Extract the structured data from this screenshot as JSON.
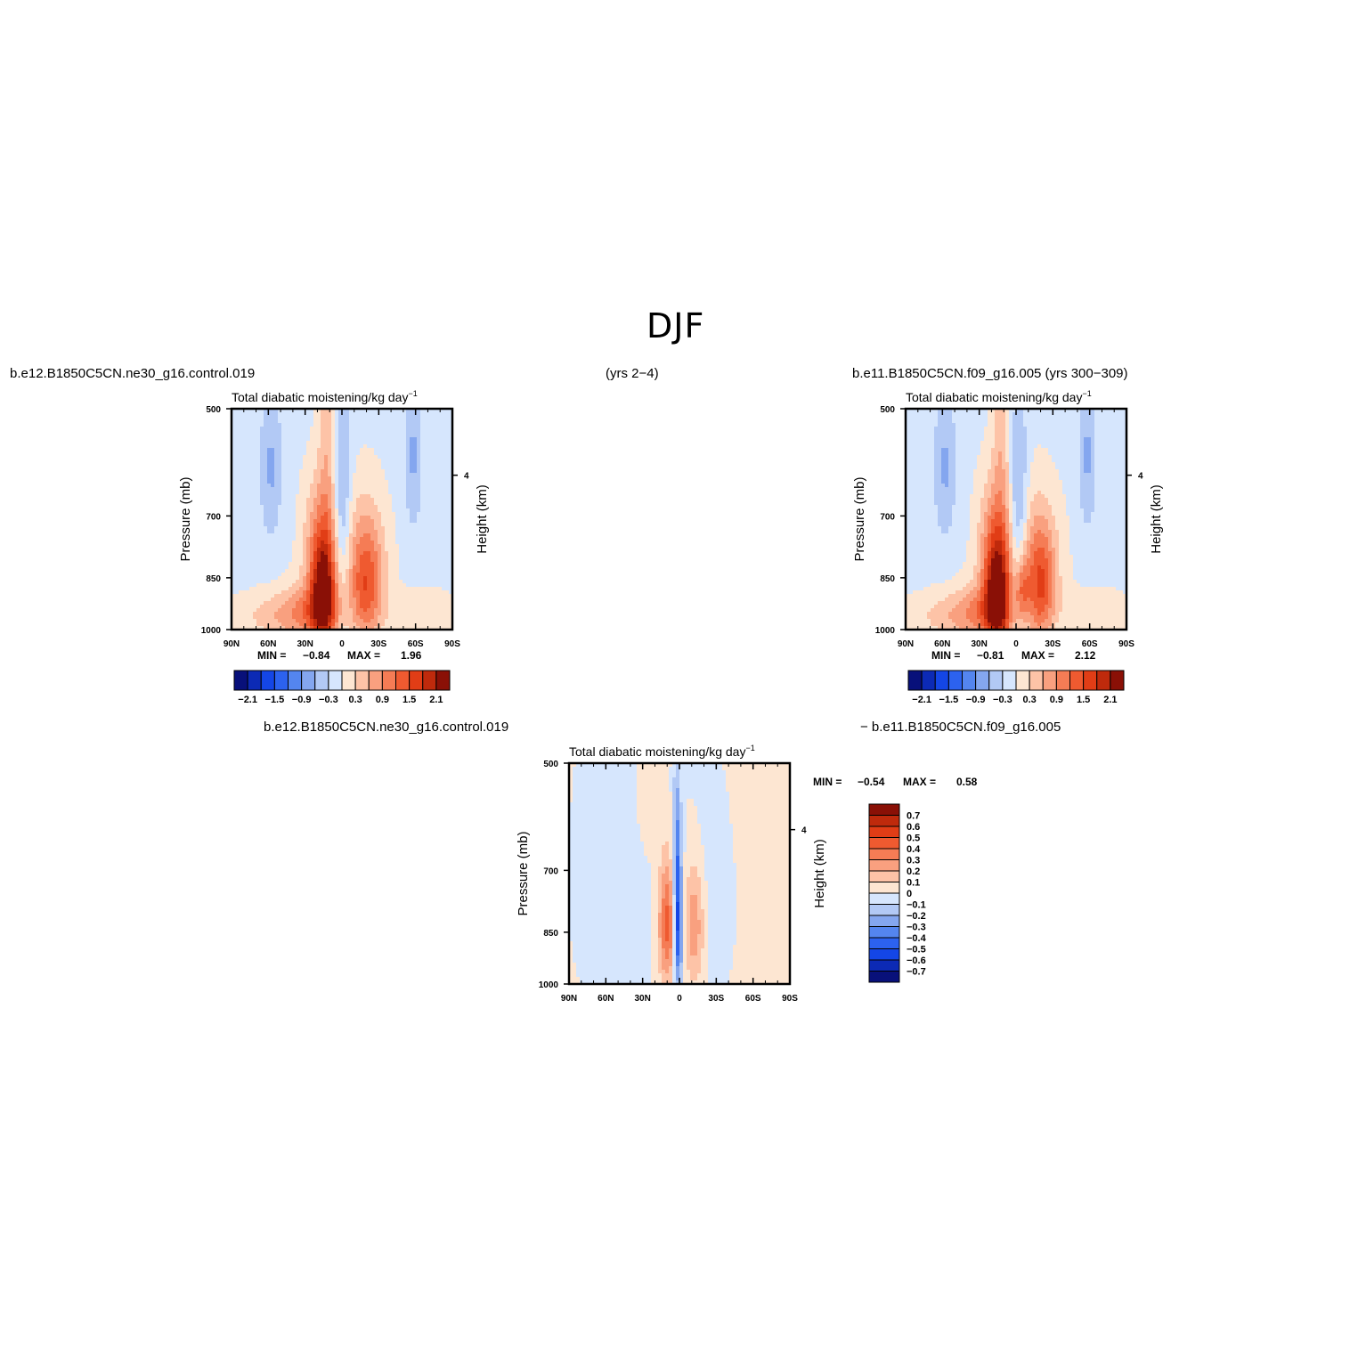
{
  "figure": {
    "title": "DJF",
    "case_test": "b.e12.B1850C5CN.ne30_g16.control.019",
    "years_test": "(yrs 2−4)",
    "case_ctrl": "b.e11.B1850C5CN.f09_g16.005 (yrs 300−309)",
    "diff_test": "b.e12.B1850C5CN.ne30_g16.control.019",
    "diff_ctrl": "− b.e11.B1850C5CN.f09_g16.005"
  },
  "colors": {
    "frame": "#000000",
    "cmap_full": [
      "#08107a",
      "#0c2ab5",
      "#1446e6",
      "#2c62ef",
      "#5485ef",
      "#84a6ef",
      "#b2c9f5",
      "#d6e6fd",
      "#fde6d2",
      "#fdc3a7",
      "#f9a07f",
      "#f57c55",
      "#ef5a30",
      "#e13d16",
      "#bf2a0c",
      "#8a1006"
    ],
    "cmap_diff": [
      "#08107a",
      "#0c2ab5",
      "#1446e6",
      "#2c62ef",
      "#5485ef",
      "#84a6ef",
      "#b2c9f5",
      "#d6e6fd",
      "#fde6d2",
      "#fdc3a7",
      "#f9a07f",
      "#f57c55",
      "#ef5a30",
      "#e13d16",
      "#bf2a0c",
      "#8a1006"
    ]
  },
  "chart_data": [
    {
      "type": "heatmap",
      "panel": "test",
      "title": "Total diabatic moistening/kg day",
      "title_sup": "−1",
      "ylabel": "Pressure (mb)",
      "ylabel_right": "Height (km)",
      "x_ticks": [
        "90N",
        "60N",
        "30N",
        "0",
        "30S",
        "60S",
        "90S"
      ],
      "y_ticks": [
        "500",
        "700",
        "850",
        "1000"
      ],
      "y_ticks_right": [
        "4"
      ],
      "min_label": "MIN =",
      "min_value": "−0.84",
      "max_label": "MAX =",
      "max_value": "1.96",
      "colorbar_labels": [
        "−2.1",
        "−1.5",
        "−0.9",
        "−0.3",
        "0.3",
        "0.9",
        "1.5",
        "2.1"
      ],
      "ylim": [
        1000,
        500
      ],
      "blobs": [
        {
          "lat": 15,
          "p": 900,
          "amp": 2.0,
          "wlat": 7,
          "wp": 110
        },
        {
          "lat": 18,
          "p": 780,
          "amp": 0.9,
          "wlat": 10,
          "wp": 120
        },
        {
          "lat": 28,
          "p": 950,
          "amp": 0.9,
          "wlat": 18,
          "wp": 60
        },
        {
          "lat": -20,
          "p": 880,
          "amp": 1.1,
          "wlat": 9,
          "wp": 110
        },
        {
          "lat": -18,
          "p": 800,
          "amp": 0.6,
          "wlat": 14,
          "wp": 120
        },
        {
          "lat": 0,
          "p": 680,
          "amp": -0.7,
          "wlat": 5,
          "wp": 150
        },
        {
          "lat": 12,
          "p": 560,
          "amp": 0.5,
          "wlat": 5,
          "wp": 150
        },
        {
          "lat": 58,
          "p": 600,
          "amp": -0.55,
          "wlat": 6,
          "wp": 100
        },
        {
          "lat": -58,
          "p": 580,
          "amp": -0.55,
          "wlat": 5,
          "wp": 100
        },
        {
          "lat": 60,
          "p": 960,
          "amp": 0.4,
          "wlat": 25,
          "wp": 50
        },
        {
          "lat": -65,
          "p": 950,
          "amp": 0.35,
          "wlat": 22,
          "wp": 50
        }
      ]
    },
    {
      "type": "heatmap",
      "panel": "control",
      "title": "Total diabatic moistening/kg day",
      "title_sup": "−1",
      "ylabel": "Pressure (mb)",
      "ylabel_right": "Height (km)",
      "x_ticks": [
        "90N",
        "60N",
        "30N",
        "0",
        "30S",
        "60S",
        "90S"
      ],
      "y_ticks": [
        "500",
        "700",
        "850",
        "1000"
      ],
      "y_ticks_right": [
        "4"
      ],
      "min_label": "MIN =",
      "min_value": "−0.81",
      "max_label": "MAX =",
      "max_value": "2.12",
      "colorbar_labels": [
        "−2.1",
        "−1.5",
        "−0.9",
        "−0.3",
        "0.3",
        "0.9",
        "1.5",
        "2.1"
      ],
      "ylim": [
        1000,
        500
      ],
      "blobs": [
        {
          "lat": 15,
          "p": 900,
          "amp": 2.1,
          "wlat": 7,
          "wp": 110
        },
        {
          "lat": 18,
          "p": 780,
          "amp": 0.9,
          "wlat": 10,
          "wp": 120
        },
        {
          "lat": 28,
          "p": 950,
          "amp": 0.9,
          "wlat": 18,
          "wp": 60
        },
        {
          "lat": -20,
          "p": 880,
          "amp": 1.2,
          "wlat": 8,
          "wp": 110
        },
        {
          "lat": -5,
          "p": 880,
          "amp": 0.9,
          "wlat": 4,
          "wp": 60
        },
        {
          "lat": -18,
          "p": 800,
          "amp": 0.6,
          "wlat": 14,
          "wp": 120
        },
        {
          "lat": -2,
          "p": 680,
          "amp": -0.7,
          "wlat": 5,
          "wp": 150
        },
        {
          "lat": 12,
          "p": 560,
          "amp": 0.5,
          "wlat": 5,
          "wp": 150
        },
        {
          "lat": 58,
          "p": 600,
          "amp": -0.55,
          "wlat": 6,
          "wp": 100
        },
        {
          "lat": -58,
          "p": 580,
          "amp": -0.55,
          "wlat": 5,
          "wp": 100
        },
        {
          "lat": 60,
          "p": 960,
          "amp": 0.4,
          "wlat": 25,
          "wp": 50
        },
        {
          "lat": -65,
          "p": 950,
          "amp": 0.35,
          "wlat": 22,
          "wp": 50
        }
      ]
    },
    {
      "type": "heatmap",
      "panel": "difference",
      "title": "Total diabatic moistening/kg day",
      "title_sup": "−1",
      "ylabel": "Pressure (mb)",
      "ylabel_right": "Height (km)",
      "x_ticks": [
        "90N",
        "60N",
        "30N",
        "0",
        "30S",
        "60S",
        "90S"
      ],
      "y_ticks": [
        "500",
        "700",
        "850",
        "1000"
      ],
      "y_ticks_right": [
        "4"
      ],
      "min_label": "MIN =",
      "min_value": "−0.54",
      "max_label": "MAX =",
      "max_value": "0.58",
      "colorbar_labels": [
        "0.7",
        "0.6",
        "0.5",
        "0.4",
        "0.3",
        "0.2",
        "0.1",
        "0",
        "−0.1",
        "−0.2",
        "−0.3",
        "−0.4",
        "−0.5",
        "−0.6",
        "−0.7"
      ],
      "ylim": [
        1000,
        500
      ],
      "blobs": [
        {
          "lat": 1,
          "p": 850,
          "amp": -0.55,
          "wlat": 2.5,
          "wp": 110
        },
        {
          "lat": 2,
          "p": 650,
          "amp": -0.3,
          "wlat": 2.5,
          "wp": 120
        },
        {
          "lat": 10,
          "p": 830,
          "amp": 0.45,
          "wlat": 5,
          "wp": 110
        },
        {
          "lat": -12,
          "p": 830,
          "amp": 0.3,
          "wlat": 6,
          "wp": 110
        },
        {
          "lat": -30,
          "p": 750,
          "amp": -0.08,
          "wlat": 20,
          "wp": 200
        },
        {
          "lat": 50,
          "p": 720,
          "amp": -0.08,
          "wlat": 25,
          "wp": 250
        },
        {
          "lat": 25,
          "p": 560,
          "amp": 0.06,
          "wlat": 10,
          "wp": 100
        },
        {
          "lat": -65,
          "p": 650,
          "amp": 0.07,
          "wlat": 18,
          "wp": 300
        }
      ]
    }
  ]
}
